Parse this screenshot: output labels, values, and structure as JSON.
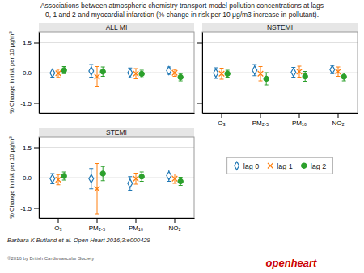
{
  "title": "Associations between atmospheric chemistry transport model pollution concentrations at lags",
  "subtitle": "0, 1 and 2 and myocardial infarction (% change in risk per 10 μg/m3 increase in pollutant).",
  "annotations": [
    {
      "text": "Barbara K Butland et al. Open Heart 2016;3:e000429"
    },
    {
      "text": "©2016 by British Cardiovascular Society"
    },
    {
      "text": "openheart",
      "color": "#cc0000"
    }
  ],
  "chart_data": [
    {
      "type": "scatter",
      "title": "ALL MI",
      "ylabel": "% Change in risk per 10 μg/m³",
      "categories": [
        null,
        null,
        null,
        null
      ],
      "ylim": [
        -2.0,
        2.0
      ],
      "yticks": [
        -1.5,
        {
          "value": 0.0,
          "label": "0.0"
        },
        1.5
      ],
      "grid": true,
      "tick_labels": "y",
      "legend": "lower right",
      "series": [
        {
          "name": "lag 0",
          "marker": "open_diamond",
          "values": [
            -0.02,
            0.08,
            -0.01,
            0.1
          ],
          "lo": [
            -0.22,
            -0.22,
            -0.25,
            -0.08
          ],
          "hi": [
            0.18,
            0.4,
            0.23,
            0.28
          ]
        },
        {
          "name": "lag 1",
          "marker": "x",
          "values": [
            -0.03,
            -0.2,
            -0.05,
            -0.01
          ],
          "lo": [
            -0.23,
            -0.7,
            -0.3,
            -0.18
          ],
          "hi": [
            0.17,
            0.3,
            0.2,
            0.16
          ]
        },
        {
          "name": "lag 2",
          "marker": "circle",
          "values": [
            0.12,
            0.05,
            -0.06,
            -0.22
          ],
          "lo": [
            -0.05,
            -0.18,
            -0.25,
            -0.4
          ],
          "hi": [
            0.3,
            0.28,
            0.12,
            -0.05
          ]
        }
      ]
    },
    {
      "type": "scatter",
      "title": "NSTEMI",
      "categories": [
        "O₃",
        "PM₂.₅",
        "PM₁₀",
        "NO₂"
      ],
      "ylim": [
        -2.0,
        2.0
      ],
      "yticks": [
        -1.5,
        {
          "value": 0.0,
          "label": "0.0"
        },
        1.5
      ],
      "grid": true,
      "tick_labels": "x",
      "series": [
        {
          "name": "lag 0",
          "marker": "open_diamond",
          "values": [
            -0.02,
            0.12,
            0.02,
            0.15
          ],
          "lo": [
            -0.28,
            -0.15,
            -0.22,
            -0.05
          ],
          "hi": [
            0.24,
            0.4,
            0.26,
            0.35
          ]
        },
        {
          "name": "lag 1",
          "marker": "x",
          "values": [
            -0.05,
            -0.05,
            0.05,
            0.05
          ],
          "lo": [
            -0.32,
            -0.4,
            -0.22,
            -0.18
          ],
          "hi": [
            0.22,
            0.3,
            0.32,
            0.28
          ]
        },
        {
          "name": "lag 2",
          "marker": "circle",
          "values": [
            -0.05,
            -0.3,
            -0.18,
            -0.2
          ],
          "lo": [
            -0.22,
            -0.6,
            -0.42,
            -0.4
          ],
          "hi": [
            0.12,
            0.0,
            0.06,
            -0.02
          ]
        }
      ]
    },
    {
      "type": "scatter",
      "title": "STEMI",
      "ylabel": "% Change in risk per 10 μg/m³",
      "categories": [
        "O₃",
        "PM₂.₅",
        "PM₁₀",
        "NO₂"
      ],
      "ylim": [
        -2.0,
        2.0
      ],
      "yticks": [
        -1.5,
        {
          "value": 0.0,
          "label": "0.0"
        },
        1.5
      ],
      "grid": true,
      "series": [
        {
          "name": "lag 0",
          "marker": "open_diamond",
          "values": [
            -0.05,
            -0.05,
            -0.28,
            0.1
          ],
          "lo": [
            -0.3,
            -0.55,
            -0.62,
            -0.18
          ],
          "hi": [
            0.2,
            0.45,
            0.05,
            0.38
          ]
        },
        {
          "name": "lag 1",
          "marker": "x",
          "values": [
            -0.1,
            -0.55,
            -0.05,
            -0.05
          ],
          "lo": [
            -0.35,
            -1.8,
            -0.32,
            -0.28
          ],
          "hi": [
            0.15,
            0.7,
            0.22,
            0.18
          ]
        },
        {
          "name": "lag 2",
          "marker": "circle",
          "values": [
            0.08,
            0.2,
            0.05,
            -0.18
          ],
          "lo": [
            -0.12,
            -0.15,
            -0.18,
            -0.38
          ],
          "hi": [
            0.28,
            0.55,
            0.28,
            0.02
          ]
        }
      ]
    }
  ]
}
